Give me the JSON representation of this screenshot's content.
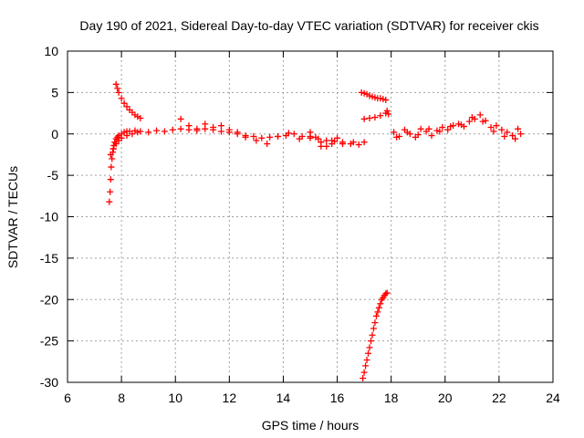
{
  "chart_data": {
    "type": "scatter",
    "title": "Day 190 of 2021, Sidereal Day-to-day VTEC variation (SDTVAR) for receiver ckis",
    "xlabel": "GPS time / hours",
    "ylabel": "SDTVAR / TECUs",
    "xlim": [
      6,
      24
    ],
    "ylim": [
      -30,
      10
    ],
    "x_ticks": [
      6,
      8,
      10,
      12,
      14,
      16,
      18,
      20,
      22,
      24
    ],
    "y_ticks": [
      10,
      5,
      0,
      -5,
      -10,
      -15,
      -20,
      -25,
      -30
    ],
    "grid": true,
    "marker": "+",
    "color": "#ff0000",
    "series": [
      {
        "name": "SDTVAR",
        "x": [
          7.55,
          7.58,
          7.6,
          7.62,
          7.65,
          7.68,
          7.7,
          7.72,
          7.75,
          7.8,
          7.85,
          7.9,
          8.0,
          8.1,
          8.2,
          8.3,
          8.5,
          8.7,
          9.0,
          9.3,
          9.6,
          9.9,
          10.2,
          10.5,
          10.8,
          11.1,
          11.4,
          11.7,
          12.0,
          12.3,
          12.6,
          12.9,
          13.2,
          13.5,
          13.8,
          14.1,
          14.4,
          14.7,
          15.0,
          15.3,
          15.6,
          15.9,
          16.2,
          16.5,
          16.8,
          17.0,
          7.8,
          7.85,
          7.9,
          8.0,
          8.1,
          8.2,
          8.3,
          8.4,
          8.5,
          8.6,
          8.7,
          7.6,
          7.7,
          7.8,
          7.9,
          8.0,
          8.2,
          8.4,
          8.6,
          10.2,
          10.5,
          10.8,
          11.1,
          11.4,
          11.7,
          12.0,
          12.3,
          12.6,
          13.0,
          13.4,
          13.8,
          14.2,
          14.6,
          15.0,
          15.4,
          15.8,
          16.2,
          16.6,
          15.0,
          15.2,
          15.4,
          15.6,
          15.8,
          16.0,
          16.9,
          17.0,
          17.1,
          17.2,
          17.3,
          17.4,
          17.5,
          17.6,
          17.7,
          17.8,
          17.0,
          17.2,
          17.4,
          17.6,
          17.8,
          17.85,
          17.9,
          16.95,
          17.0,
          17.05,
          17.1,
          17.15,
          17.2,
          17.25,
          17.3,
          17.35,
          17.4,
          17.45,
          17.5,
          17.55,
          17.6,
          17.65,
          17.7,
          17.75,
          17.8,
          17.85,
          18.1,
          18.3,
          18.5,
          18.7,
          18.9,
          19.1,
          19.3,
          19.5,
          19.7,
          19.9,
          20.1,
          20.3,
          20.5,
          20.7,
          20.9,
          21.1,
          21.3,
          21.5,
          21.7,
          21.9,
          22.1,
          22.3,
          22.5,
          22.7,
          22.8,
          18.2,
          18.6,
          19.0,
          19.4,
          19.8,
          20.2,
          20.6,
          21.0,
          21.4,
          21.8,
          22.2,
          22.6
        ],
        "y": [
          -8.2,
          -7.0,
          -5.5,
          -4.0,
          -3.0,
          -2.2,
          -1.8,
          -1.4,
          -1.0,
          -0.6,
          -0.4,
          -0.2,
          0.0,
          0.2,
          0.3,
          0.3,
          0.4,
          0.3,
          0.2,
          0.4,
          0.3,
          0.5,
          0.6,
          0.5,
          0.4,
          0.6,
          0.5,
          0.3,
          0.2,
          0.0,
          -0.2,
          -0.3,
          -0.5,
          -0.4,
          -0.3,
          -0.2,
          0.0,
          -0.3,
          -0.5,
          -0.6,
          -0.8,
          -0.9,
          -1.0,
          -1.2,
          -1.3,
          -1.0,
          6.0,
          5.5,
          5.0,
          4.3,
          3.7,
          3.3,
          2.9,
          2.6,
          2.3,
          2.1,
          1.9,
          -2.5,
          -1.8,
          -1.2,
          -0.8,
          -0.5,
          -0.2,
          0.0,
          0.2,
          1.8,
          1.0,
          0.6,
          1.2,
          0.8,
          1.0,
          0.5,
          0.2,
          -0.4,
          -0.8,
          -1.2,
          -0.3,
          0.1,
          -0.6,
          -0.3,
          -1.5,
          -0.8,
          -1.2,
          -1.0,
          0.2,
          -0.4,
          -1.0,
          -1.5,
          -1.2,
          -0.5,
          5.0,
          4.9,
          4.8,
          4.6,
          4.5,
          4.4,
          4.3,
          4.3,
          4.2,
          4.1,
          1.8,
          1.9,
          2.0,
          2.2,
          2.5,
          2.8,
          2.4,
          -29.5,
          -28.8,
          -28.0,
          -27.3,
          -26.5,
          -25.8,
          -25.0,
          -24.3,
          -23.5,
          -22.8,
          -22.0,
          -21.5,
          -21.0,
          -20.5,
          -20.0,
          -19.8,
          -19.5,
          -19.3,
          -19.2,
          0.2,
          -0.3,
          0.5,
          0.0,
          -0.4,
          0.6,
          0.3,
          -0.2,
          0.4,
          0.8,
          0.5,
          1.0,
          1.2,
          0.9,
          1.5,
          1.8,
          2.3,
          1.6,
          0.8,
          1.0,
          0.5,
          0.2,
          -0.2,
          0.6,
          0.0,
          -0.4,
          0.2,
          -0.1,
          0.6,
          0.3,
          0.9,
          1.1,
          2.0,
          1.5,
          0.3,
          -0.3,
          -0.6
        ]
      }
    ]
  }
}
